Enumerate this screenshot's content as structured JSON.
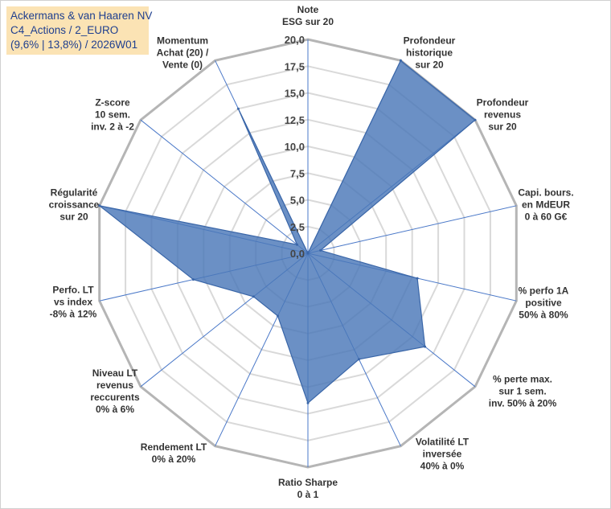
{
  "title_box": {
    "line1": "Ackermans & van Haaren NV",
    "line2": "C4_Actions / 2_EURO",
    "line3": "(9,6% | 13,8%) / 2026W01"
  },
  "colors": {
    "fill": "#4a78b8",
    "stroke": "#3a66a8",
    "title_bg": "#fbe3b4",
    "title_text": "#1f3f8f",
    "grid": "#d9d9d9",
    "spoke": "#4a78c8"
  },
  "chart_data": {
    "type": "radar",
    "rmin": 0,
    "rmax": 20,
    "tick_step": 2.5,
    "tick_labels": [
      "0,0",
      "2,5",
      "5,0",
      "7,5",
      "10,0",
      "12,5",
      "15,0",
      "17,5",
      "20,0"
    ],
    "grid": true,
    "categories": [
      [
        "Note",
        "ESG sur 20"
      ],
      [
        "Profondeur",
        "historique",
        "sur 20"
      ],
      [
        "Profondeur",
        "revenus",
        "sur 20"
      ],
      [
        "Capi. bours.",
        "en MdEUR",
        "0 à 60 G€"
      ],
      [
        "% perfo 1A",
        "positive",
        "50% à 80%"
      ],
      [
        "% perte max.",
        "sur 1 sem.",
        "inv. 50% à 20%"
      ],
      [
        "Volatilité LT",
        "inversée",
        "40% à 0%"
      ],
      [
        "Ratio Sharpe",
        "0 à 1"
      ],
      [
        "Rendement LT",
        "0% à 20%"
      ],
      [
        "Niveau LT",
        "revenus",
        "reccurents",
        "0% à 6%"
      ],
      [
        "Perfo. LT",
        "vs index",
        "-8% à 12%"
      ],
      [
        "Régularité",
        "croissance",
        "sur 20"
      ],
      [
        "Z-score",
        "10 sem.",
        "inv. 2 à -2"
      ],
      [
        "Momentum",
        "Achat (20) /",
        "Vente (0)"
      ]
    ],
    "values": [
      0,
      20,
      20,
      1.2,
      10.5,
      14,
      11,
      14,
      6.5,
      6.5,
      11,
      20,
      1.3,
      15
    ]
  }
}
